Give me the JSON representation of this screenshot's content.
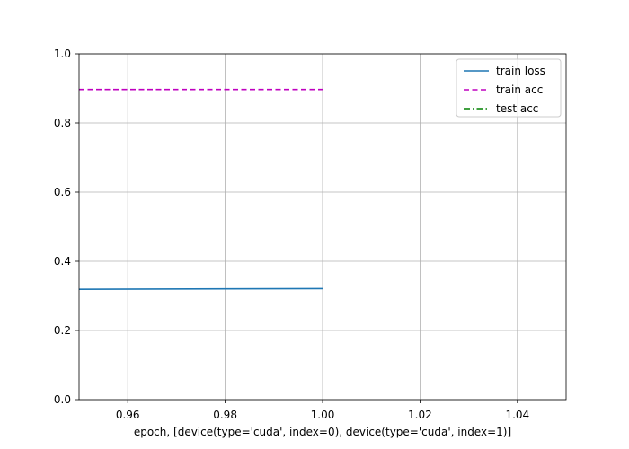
{
  "chart_data": {
    "type": "line",
    "title": "",
    "xlabel": "epoch, [device(type='cuda', index=0), device(type='cuda', index=1)]",
    "ylabel": "",
    "xlim": [
      0.95,
      1.05
    ],
    "ylim": [
      0.0,
      1.0
    ],
    "xticks": [
      "0.96",
      "0.98",
      "1.00",
      "1.02",
      "1.04"
    ],
    "yticks": [
      "0.0",
      "0.2",
      "0.4",
      "0.6",
      "0.8",
      "1.0"
    ],
    "grid": true,
    "legend_position": "top-right",
    "series": [
      {
        "name": "train loss",
        "color": "#1f77b4",
        "style": "solid",
        "points": [
          [
            0.95,
            0.319
          ],
          [
            1.0,
            0.321
          ]
        ]
      },
      {
        "name": "train acc",
        "color": "#bf00bf",
        "style": "dashed",
        "points": [
          [
            0.95,
            0.897
          ],
          [
            1.0,
            0.897
          ]
        ]
      },
      {
        "name": "test acc",
        "color": "#008000",
        "style": "dashdot",
        "points": []
      }
    ]
  }
}
